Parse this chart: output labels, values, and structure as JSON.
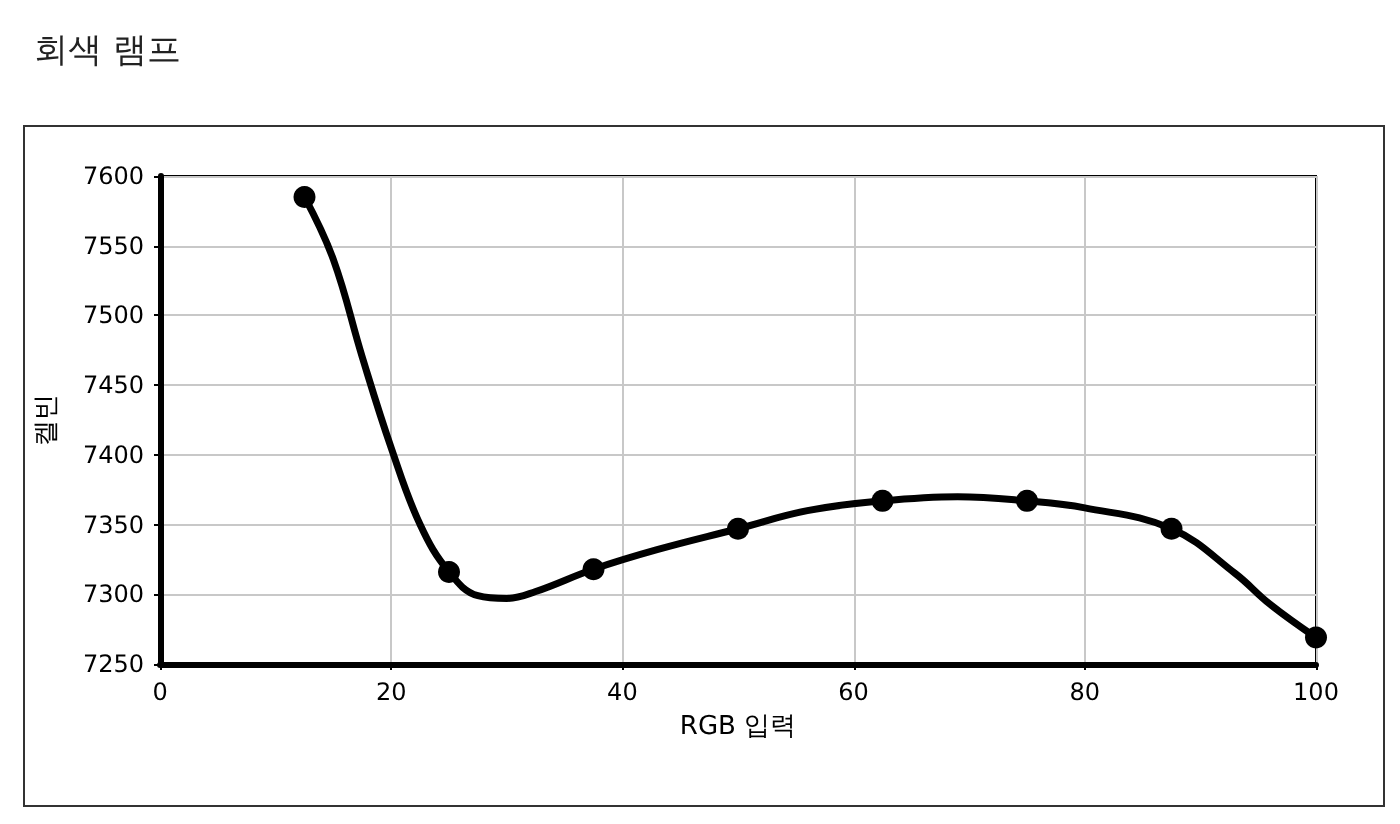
{
  "chart_data": {
    "type": "line",
    "title": "회색 램프",
    "xlabel": "RGB 입력",
    "ylabel": "켈빈",
    "xlim": [
      0,
      100
    ],
    "xticks": [
      0,
      20,
      40,
      60,
      80,
      100
    ],
    "ylim": [
      7250,
      7600
    ],
    "yticks": [
      7250,
      7300,
      7350,
      7400,
      7450,
      7500,
      7550,
      7600
    ],
    "grid": true,
    "series": [
      {
        "color": "#000000",
        "marker": "none",
        "x": [
          12.5,
          15,
          17.5,
          20,
          22.5,
          25,
          27.5,
          30,
          32.5,
          37.5,
          43,
          50,
          56,
          62.5,
          69,
          75,
          80,
          87.5,
          93,
          96,
          100
        ],
        "values": [
          7585,
          7540,
          7470,
          7405,
          7350,
          7316,
          7299,
          7297,
          7302,
          7318,
          7332,
          7347,
          7360,
          7367,
          7370,
          7367,
          7362,
          7347,
          7315,
          7293,
          7269
        ]
      },
      {
        "type": "scatter",
        "color": "#000000",
        "marker": "circle",
        "x": [
          12.5,
          25,
          37.5,
          50,
          62.5,
          75,
          87.5,
          100
        ],
        "values": [
          7585,
          7316,
          7318,
          7347,
          7367,
          7367,
          7347,
          7269
        ]
      }
    ]
  }
}
